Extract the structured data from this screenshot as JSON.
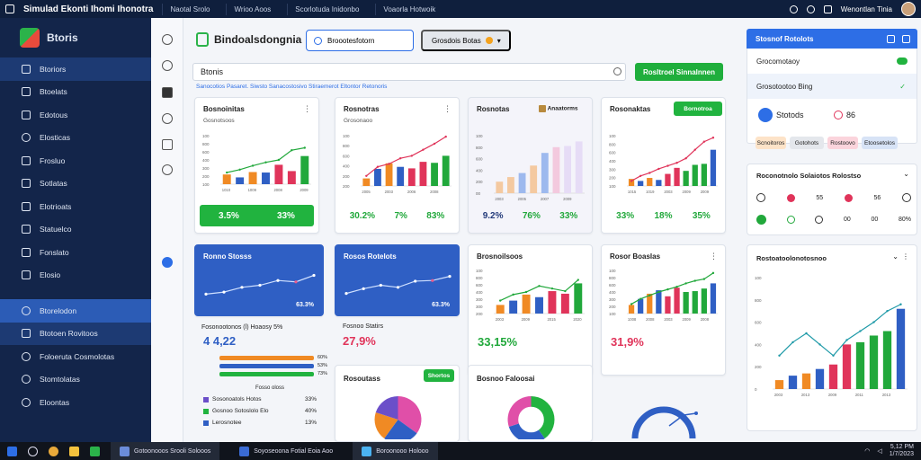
{
  "window": {
    "title": "Simulad Ekonti Ihomi Ihonotra",
    "tabs": [
      "Naotal Srolo",
      "Wrioo Aoos",
      "Scorlotuda Inidonbo",
      "Voaorla Hotwoik"
    ],
    "user_name": "Wenontlan Tinia"
  },
  "colors": {
    "accent_blue": "#2d6ee6",
    "accent_green": "#21b33f",
    "sidebar_bg": "#13254a",
    "bar_blue": "#2f5fc4",
    "bar_green": "#21a83b",
    "bar_orange": "#f08a24",
    "bar_red": "#e0345a"
  },
  "sidebar": {
    "brand": "Btoris",
    "items": [
      {
        "label": "Btoriors",
        "icon": "dashboard-icon"
      },
      {
        "label": "Btoelats",
        "icon": "list-icon"
      },
      {
        "label": "Edotous",
        "icon": "folder-icon"
      },
      {
        "label": "Elosticas",
        "icon": "chart-icon"
      },
      {
        "label": "Frosluo",
        "icon": "document-icon"
      },
      {
        "label": "Sotlatas",
        "icon": "tag-icon"
      },
      {
        "label": "Elotrioats",
        "icon": "calendar-icon"
      },
      {
        "label": "Statuelco",
        "icon": "settings-icon"
      },
      {
        "label": "Fonslato",
        "icon": "user-icon"
      },
      {
        "label": "Elosio",
        "icon": "mail-icon"
      }
    ],
    "lower_items": [
      {
        "label": "Btorelodon",
        "icon": "shield-icon"
      },
      {
        "label": "Btotoen Rovitoos",
        "icon": "bookmark-icon"
      },
      {
        "label": "Foloeruta Cosmolotas",
        "icon": "gear-icon"
      },
      {
        "label": "Stomtolatas",
        "icon": "help-icon"
      },
      {
        "label": "Eloontas",
        "icon": "info-icon"
      }
    ]
  },
  "header": {
    "title": "Bindoalsdongnia",
    "search_button": "Broootesfotorn",
    "filter_button": "Grosdois Botas"
  },
  "search": {
    "value": "Btonis"
  },
  "action_button": "Rosltroel Sinnalnnen",
  "sublink": "Sanocotios Pasaret. Siwsto Sanacostosivo Stiraemerot Eltontor Retonoris",
  "cards": {
    "c1": {
      "title": "Bosnoinitas",
      "subtitle": "Gosnotsoos",
      "stats": [
        "3.5%",
        "33%"
      ]
    },
    "c2": {
      "title": "Rosnotras",
      "subtitle": "Grosonaoo",
      "stats": [
        "30.2%",
        "7%",
        "83%"
      ]
    },
    "c3": {
      "title": "Rosnotas",
      "tag": "Anaatorms",
      "stats": [
        "9.2%",
        "76%",
        "33%"
      ]
    },
    "c4": {
      "title": "Rosonaktas",
      "button": "Bornotroa",
      "stats": [
        "33%",
        "18%",
        "35%"
      ]
    },
    "c5": {
      "title": "Ronno Stosss",
      "value": "63.3%"
    },
    "c6": {
      "title": "Rosos Rotelots",
      "value": "63.3%"
    },
    "c7": {
      "title": "Brosnoilsoos"
    },
    "c8": {
      "title": "Rosor Boaslas"
    },
    "c9": {
      "title": "Rosoutass",
      "button": "Shortos"
    },
    "c10": {
      "title": "Bosnoo Faloosai"
    },
    "kpi1": {
      "label": "Fosonootonos (l) Hoaosy 5%",
      "value": "4 4,22"
    },
    "kpi2": {
      "label": "Fosnoo Statirs",
      "value": "27,9%"
    },
    "kpi3": {
      "value": "33,15%"
    },
    "kpi4": {
      "value": "31,9%"
    },
    "progress_label": "Fosso oloss",
    "progress_rows": [
      {
        "value": "60%"
      },
      {
        "value": "53%"
      },
      {
        "value": "73%"
      }
    ],
    "legend_rows": [
      {
        "label": "Sosonoatols Hotos",
        "value": "33%"
      },
      {
        "label": "Gosnoo Sotoslolo Elo",
        "value": "40%"
      },
      {
        "label": "Lerosnotee",
        "value": "13%"
      }
    ]
  },
  "right_panel": {
    "head": "Stosnof Rotolots",
    "rows": [
      "Grocomotaoy",
      "Grosotootoo Bing"
    ],
    "status_label": "Stotods",
    "status_value": "86",
    "pills": [
      "Scnoitoros",
      "Gotohots",
      "Rostoovo",
      "Etoosetolos"
    ],
    "card2_title": "Roconotnolo Solaiotos Rolostso",
    "card2_values": [
      "55",
      "56",
      "00",
      "00",
      "80%"
    ],
    "card3_title": "Rostoatoolonotosnoo",
    "card3_axis": [
      "100",
      "800",
      "600",
      "400",
      "200",
      "0"
    ],
    "card3_x": [
      "2003",
      "2010",
      "2013",
      "2005",
      "2009"
    ]
  },
  "taskbar": {
    "tasks": [
      "Gotoonooos Srooli Solooos",
      "Soyoseoona Fotial Eoia Aoo",
      "Boroonooo Holooo"
    ],
    "time": "5,12 PM",
    "date": "1/7/2023"
  },
  "chart_data": [
    {
      "type": "bar",
      "title": "Bosnoinitas",
      "categories": [
        "1010",
        "1005",
        "1009",
        "2008",
        "2008",
        "2003",
        "2009"
      ],
      "values": [
        20,
        14,
        25,
        24,
        40,
        27,
        58
      ],
      "line": [
        24,
        30,
        38,
        45,
        50,
        70,
        75
      ],
      "ylim": [
        0,
        100
      ],
      "ylabel_ticks": [
        "100",
        "800",
        "600",
        "400",
        "300",
        "200",
        "100"
      ]
    },
    {
      "type": "bar",
      "title": "Rosnotras",
      "categories": [
        "2005",
        "2000",
        "2003",
        "2005",
        "2006",
        "2008",
        "2008",
        "2009"
      ],
      "values": [
        15,
        34,
        45,
        38,
        35,
        48,
        46,
        60
      ],
      "line": [
        20,
        38,
        44,
        55,
        60,
        72,
        84,
        98
      ],
      "ylim": [
        0,
        100
      ],
      "ylabel_ticks": [
        "100",
        "800",
        "600",
        "400",
        "200",
        "200"
      ]
    },
    {
      "type": "bar",
      "title": "Rosnotas",
      "categories": [
        "2003",
        "2004",
        "2005",
        "2006",
        "2007",
        "2008",
        "2009",
        "2010"
      ],
      "values": [
        20,
        28,
        35,
        48,
        70,
        80,
        82,
        90
      ],
      "ylim": [
        0,
        100
      ],
      "ylabel_ticks": [
        "100",
        "800",
        "600",
        "400",
        "200",
        "00"
      ]
    },
    {
      "type": "bar",
      "title": "Rosonaktas",
      "categories": [
        "1015",
        "1005",
        "1019",
        "2007",
        "2003",
        "2008",
        "2009",
        "2006",
        "2009",
        "2009"
      ],
      "values": [
        14,
        10,
        16,
        12,
        24,
        36,
        30,
        42,
        44,
        72
      ],
      "line": [
        10,
        20,
        26,
        34,
        40,
        46,
        55,
        72,
        88,
        96
      ],
      "ylim": [
        0,
        100
      ],
      "ylabel_ticks": [
        "100",
        "800",
        "600",
        "400",
        "300",
        "200",
        "100"
      ]
    },
    {
      "type": "line",
      "title": "Ronno Stosss",
      "x": [
        1,
        2,
        3,
        4,
        5,
        6,
        7
      ],
      "values": [
        20,
        26,
        40,
        46,
        60,
        56,
        75
      ]
    },
    {
      "type": "line",
      "title": "Rosos Rotelots",
      "x": [
        1,
        2,
        3,
        4,
        5,
        6,
        7
      ],
      "values": [
        22,
        36,
        46,
        40,
        58,
        60,
        72
      ]
    },
    {
      "type": "bar",
      "title": "Brosnoilsoos",
      "categories": [
        "2003",
        "2005",
        "2009",
        "2010",
        "2015",
        "2002",
        "2020"
      ],
      "values": [
        20,
        30,
        44,
        38,
        52,
        46,
        70
      ],
      "line": [
        30,
        44,
        50,
        64,
        58,
        52,
        78
      ],
      "ylim": [
        0,
        100
      ],
      "ylabel_ticks": [
        "100",
        "800",
        "600",
        "400",
        "300",
        "300",
        "200"
      ]
    },
    {
      "type": "bar",
      "title": "Rosor Boaslas",
      "categories": [
        "1008",
        "1009",
        "2008",
        "2008",
        "2003",
        "2006",
        "2009",
        "2009",
        "2008",
        "2009"
      ],
      "values": [
        20,
        34,
        46,
        54,
        40,
        60,
        50,
        52,
        58,
        70
      ],
      "line": [
        22,
        34,
        42,
        50,
        56,
        62,
        70,
        76,
        80,
        94
      ],
      "ylim": [
        0,
        100
      ],
      "ylabel_ticks": [
        "100",
        "800",
        "600",
        "400",
        "300",
        "200",
        "100"
      ]
    },
    {
      "type": "pie",
      "title": "Rosoutass",
      "values": [
        35,
        25,
        20,
        20
      ]
    },
    {
      "type": "pie",
      "title": "Bosnoo Faloosai",
      "values": [
        40,
        30,
        30
      ]
    },
    {
      "type": "bar",
      "title": "Rostoatoolonotosnoo",
      "categories": [
        "2003",
        "2010",
        "2013",
        "2005",
        "2009",
        "2010",
        "2011",
        "2012",
        "2013",
        "2014"
      ],
      "values": [
        8,
        12,
        14,
        18,
        22,
        40,
        42,
        48,
        52,
        72
      ],
      "line": [
        30,
        42,
        50,
        40,
        30,
        44,
        52,
        60,
        70,
        76
      ],
      "ylim": [
        0,
        100
      ],
      "ylabel_ticks": [
        "100",
        "800",
        "600",
        "400",
        "200",
        "0"
      ]
    }
  ]
}
